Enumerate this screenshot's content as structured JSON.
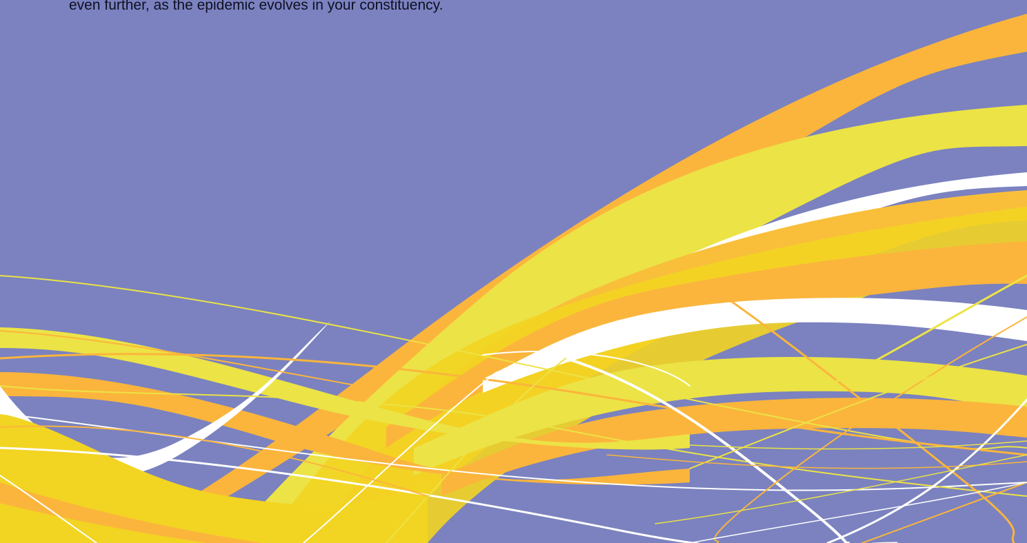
{
  "page": {
    "background": "#7b82bf",
    "text_lines": [
      "even further, as the epidemic evolves in your constituency."
    ]
  },
  "decoration": {
    "name": "flowing-ribbons-graphic",
    "colors": {
      "orange": "#fbb53c",
      "yellow": "#ece346",
      "gold": "#f2d422",
      "white": "#ffffff"
    }
  }
}
